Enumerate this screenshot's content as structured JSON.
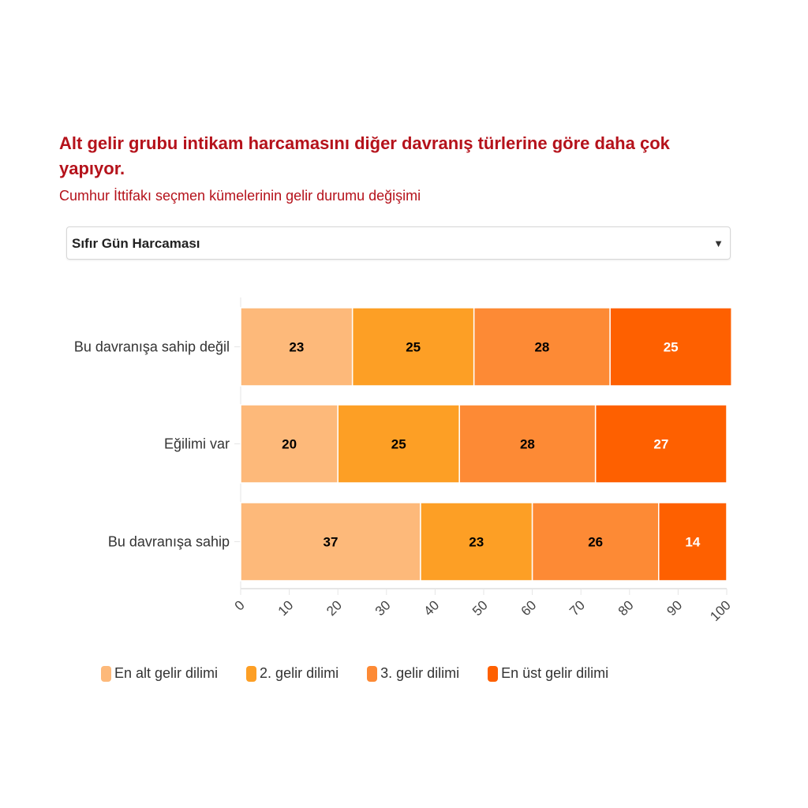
{
  "header": {
    "title": "Alt gelir grubu intikam harcamasını diğer davranış türlerine göre daha çok yapıyor.",
    "subtitle": "Cumhur İttifakı seçmen kümelerinin gelir durumu değişimi"
  },
  "dropdown": {
    "selected": "Sıfır Gün Harcaması",
    "icon": "caret-down-icon"
  },
  "chart_data": {
    "type": "bar",
    "orientation": "horizontal",
    "stacked": true,
    "categories": [
      "Bu davranışa sahip değil",
      "Eğilimi var",
      "Bu davranışa sahip"
    ],
    "series": [
      {
        "name": "En alt gelir dilimi",
        "color": "#fdb97a",
        "label_color": "#000000",
        "values": [
          23,
          20,
          37
        ]
      },
      {
        "name": "2. gelir dilimi",
        "color": "#fd9f25",
        "label_color": "#000000",
        "values": [
          25,
          25,
          23
        ]
      },
      {
        "name": "3. gelir dilimi",
        "color": "#fd8a35",
        "label_color": "#000000",
        "values": [
          28,
          28,
          26
        ]
      },
      {
        "name": "En üst gelir dilimi",
        "color": "#fe6000",
        "label_color": "#ffffff",
        "values": [
          25,
          27,
          14
        ]
      }
    ],
    "xlim": [
      0,
      100
    ],
    "xticks": [
      "0",
      "10",
      "20",
      "30",
      "40",
      "50",
      "60",
      "70",
      "80",
      "90",
      "100"
    ],
    "legend_position": "bottom"
  }
}
